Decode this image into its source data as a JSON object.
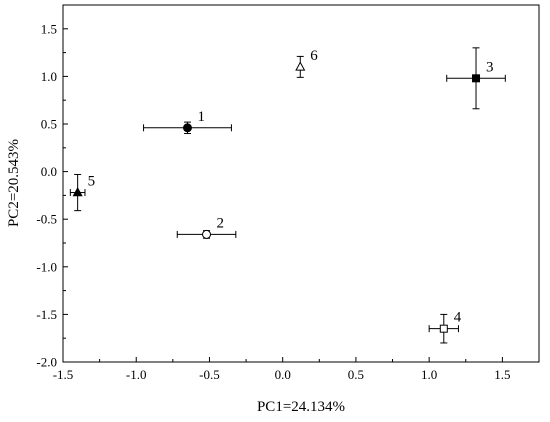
{
  "chart_data": {
    "type": "scatter",
    "title": "",
    "xlabel": "PC1=24.134%",
    "ylabel": "PC2=20.543%",
    "xlim": [
      -1.5,
      1.75
    ],
    "ylim": [
      -2.0,
      1.75
    ],
    "x_ticks": [
      -1.5,
      -1.0,
      -0.5,
      0.0,
      0.5,
      1.0,
      1.5
    ],
    "x_tick_labels": [
      "-1.5",
      "-1.0",
      "-0.5",
      "0.0",
      "0.5",
      "1.0",
      "1.5"
    ],
    "y_ticks": [
      -2.0,
      -1.5,
      -1.0,
      -0.5,
      0.0,
      0.5,
      1.0,
      1.5
    ],
    "y_tick_labels": [
      "-2.0",
      "-1.5",
      "-1.0",
      "-0.5",
      "0.0",
      "0.5",
      "1.0",
      "1.5"
    ],
    "grid": false,
    "points": [
      {
        "label": "1",
        "x": -0.65,
        "y": 0.46,
        "x_err": 0.3,
        "y_err": 0.06,
        "marker": "circle-filled"
      },
      {
        "label": "2",
        "x": -0.52,
        "y": -0.66,
        "x_err": 0.2,
        "y_err": 0.04,
        "marker": "circle-open"
      },
      {
        "label": "3",
        "x": 1.32,
        "y": 0.98,
        "x_err": 0.2,
        "y_err": 0.32,
        "marker": "square-filled"
      },
      {
        "label": "4",
        "x": 1.1,
        "y": -1.65,
        "x_err": 0.1,
        "y_err": 0.15,
        "marker": "square-open"
      },
      {
        "label": "5",
        "x": -1.4,
        "y": -0.22,
        "x_err": 0.05,
        "y_err": 0.19,
        "marker": "triangle-filled"
      },
      {
        "label": "6",
        "x": 0.12,
        "y": 1.1,
        "x_err": 0.0,
        "y_err": 0.11,
        "marker": "triangle-open"
      }
    ]
  }
}
